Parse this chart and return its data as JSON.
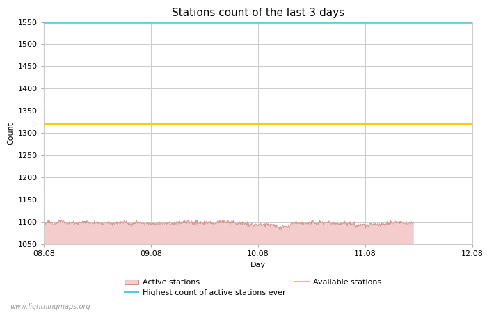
{
  "title": "Stations count of the last 3 days",
  "xlabel": "Day",
  "ylabel": "Count",
  "ylim": [
    1050,
    1550
  ],
  "yticks": [
    1050,
    1100,
    1150,
    1200,
    1250,
    1300,
    1350,
    1400,
    1450,
    1500,
    1550
  ],
  "x_start": 0.0,
  "x_end": 4.0,
  "xtick_positions": [
    0.0,
    1.0,
    2.0,
    3.0,
    4.0
  ],
  "xtick_labels": [
    "08.08",
    "09.08",
    "10.08",
    "11.08",
    "12.08"
  ],
  "active_stations_mean": 1098,
  "active_stations_noise": 4,
  "data_end_x": 3.45,
  "highest_count_ever": 1548,
  "available_stations": 1320,
  "active_fill_color": "#f5cccc",
  "active_line_color": "#d09090",
  "highest_count_color": "#55ccdd",
  "available_color": "#ffcc00",
  "background_color": "#ffffff",
  "grid_color": "#cccccc",
  "watermark": "www.lightningmaps.org",
  "title_fontsize": 11,
  "axis_fontsize": 8,
  "legend_fontsize": 8
}
